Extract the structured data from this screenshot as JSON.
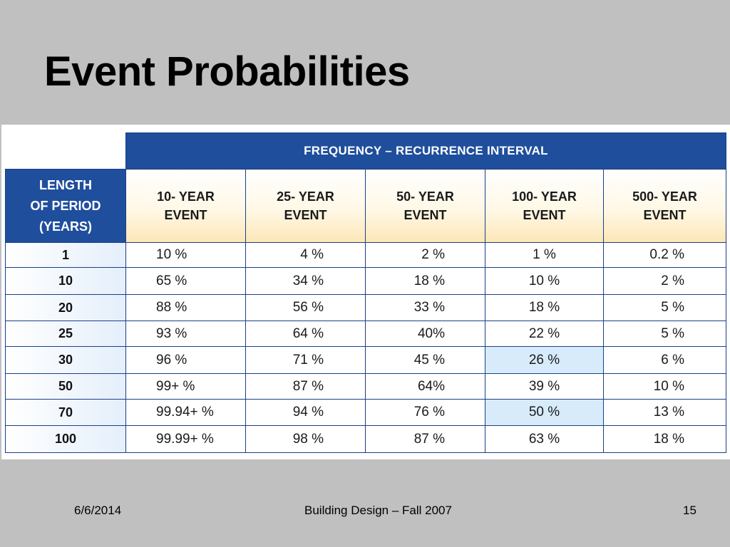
{
  "slide": {
    "title": "Event Probabilities"
  },
  "table": {
    "group_header": "FREQUENCY – RECURRENCE INTERVAL",
    "row_header": [
      "LENGTH",
      "OF PERIOD",
      "(YEARS)"
    ],
    "columns": [
      [
        "10- YEAR",
        "EVENT"
      ],
      [
        "25- YEAR",
        "EVENT"
      ],
      [
        "50- YEAR",
        "EVENT"
      ],
      [
        "100- YEAR",
        "EVENT"
      ],
      [
        "500- YEAR",
        "EVENT"
      ]
    ],
    "rows": [
      {
        "period": "1",
        "values": [
          "10 %",
          "4 %",
          "2 %",
          "1 %",
          "0.2 %"
        ]
      },
      {
        "period": "10",
        "values": [
          "65 %",
          "34 %",
          "18 %",
          "10 %",
          "2 %"
        ]
      },
      {
        "period": "20",
        "values": [
          "88 %",
          "56 %",
          "33 %",
          "18 %",
          "5 %"
        ]
      },
      {
        "period": "25",
        "values": [
          "93 %",
          "64 %",
          "40%",
          "22 %",
          "5 %"
        ]
      },
      {
        "period": "30",
        "values": [
          "96 %",
          "71 %",
          "45 %",
          "26 %",
          "6 %"
        ]
      },
      {
        "period": "50",
        "values": [
          "99+ %",
          "87 %",
          "64%",
          "39 %",
          "10 %"
        ]
      },
      {
        "period": "70",
        "values": [
          "99.94+ %",
          "94 %",
          "76 %",
          "50 %",
          "13 %"
        ]
      },
      {
        "period": "100",
        "values": [
          "99.99+ %",
          "98 %",
          "87 %",
          "63 %",
          "18 %"
        ]
      }
    ],
    "highlighted_cells": [
      {
        "row": 4,
        "col": 3
      },
      {
        "row": 6,
        "col": 3
      }
    ],
    "colors": {
      "header_blue": "#1f4e9c",
      "highlight": "#d7ebfb",
      "column_header_gold": "#fde6b6"
    }
  },
  "footer": {
    "date": "6/6/2014",
    "course": "Building Design – Fall 2007",
    "page": "15"
  }
}
